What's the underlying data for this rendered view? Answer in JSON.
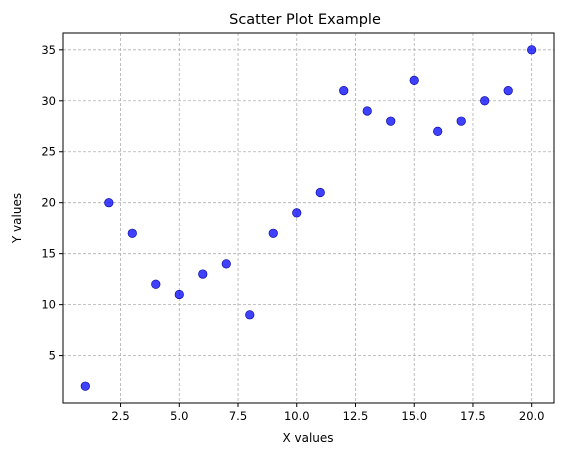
{
  "chart_data": {
    "type": "scatter",
    "title": "Scatter Plot Example",
    "xlabel": "X values",
    "ylabel": "Y values",
    "xlim": [
      0.05,
      20.95
    ],
    "ylim": [
      0.35,
      36.65
    ],
    "grid": true,
    "xticks": [
      2.5,
      5.0,
      7.5,
      10.0,
      12.5,
      15.0,
      17.5,
      20.0
    ],
    "xtick_labels": [
      "2.5",
      "5.0",
      "7.5",
      "10.0",
      "12.5",
      "15.0",
      "17.5",
      "20.0"
    ],
    "yticks": [
      5,
      10,
      15,
      20,
      25,
      30,
      35
    ],
    "ytick_labels": [
      "5",
      "10",
      "15",
      "20",
      "25",
      "30",
      "35"
    ],
    "marker_color": "#0000ff",
    "x": [
      1,
      2,
      3,
      4,
      5,
      6,
      7,
      8,
      9,
      10,
      11,
      12,
      13,
      14,
      15,
      16,
      17,
      18,
      19,
      20
    ],
    "y": [
      2,
      20,
      17,
      12,
      11,
      13,
      14,
      9,
      17,
      19,
      21,
      31,
      29,
      28,
      32,
      27,
      28,
      30,
      31,
      35
    ]
  }
}
